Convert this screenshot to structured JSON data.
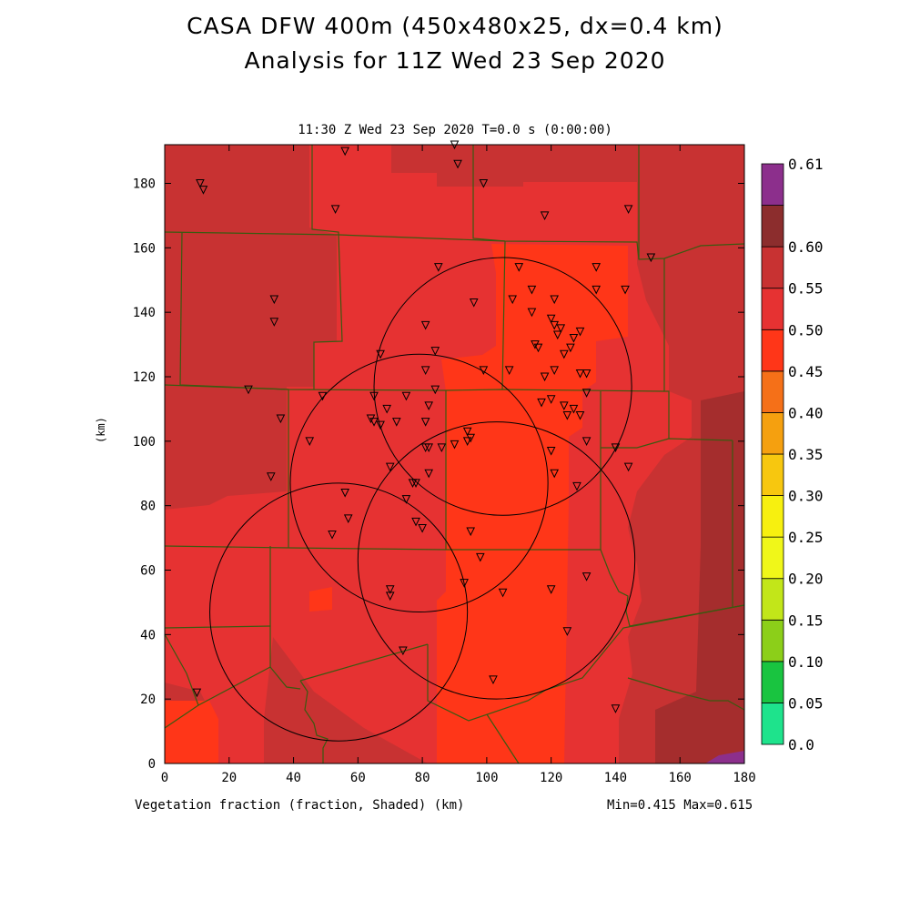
{
  "title_line1": "CASA DFW 400m (450x480x25, dx=0.4 km)",
  "title_line2": "Analysis for 11Z Wed 23 Sep 2020",
  "subtitle": "11:30 Z Wed 23 Sep 2020   T=0.0 s (0:00:00)",
  "bottom_left_label": "Vegetation fraction (fraction, Shaded)  (km)",
  "min_max_label": "Min=0.415 Max=0.615",
  "map_data": {
    "x_axis": {
      "label": "",
      "range": [
        0,
        180
      ],
      "ticks": [
        0,
        20,
        40,
        60,
        80,
        100,
        120,
        140,
        160,
        180
      ]
    },
    "y_axis": {
      "label": "(km)",
      "range": [
        0,
        192
      ],
      "ticks": [
        0,
        20,
        40,
        60,
        80,
        100,
        120,
        140,
        160,
        180
      ]
    },
    "color_scale": {
      "levels": [
        "0.0",
        "0.05",
        "0.10",
        "0.15",
        "0.20",
        "0.25",
        "0.30",
        "0.35",
        "0.40",
        "0.45",
        "0.50",
        "0.55",
        "0.60",
        "0.61"
      ],
      "colors": [
        "#1ee38c",
        "#19c440",
        "#8ccf19",
        "#c2e619",
        "#f0f719",
        "#f7f00f",
        "#f7c70f",
        "#f5a00f",
        "#f57018",
        "#ff3618",
        "#e63232",
        "#c83232",
        "#8c2d2d",
        "#8c2f8c"
      ]
    },
    "radar_rings": [
      {
        "cx": 54,
        "cy": 47,
        "r": 40
      },
      {
        "cx": 79,
        "cy": 87,
        "r": 40
      },
      {
        "cx": 103,
        "cy": 63,
        "r": 43
      },
      {
        "cx": 105,
        "cy": 117,
        "r": 40
      }
    ],
    "stations": [
      [
        11,
        180
      ],
      [
        12,
        178
      ],
      [
        56,
        190
      ],
      [
        53,
        172
      ],
      [
        90,
        192
      ],
      [
        91,
        186
      ],
      [
        99,
        180
      ],
      [
        118,
        170
      ],
      [
        144,
        172
      ],
      [
        151,
        157
      ],
      [
        85,
        154
      ],
      [
        110,
        154
      ],
      [
        134,
        154
      ],
      [
        34,
        144
      ],
      [
        34,
        137
      ],
      [
        96,
        143
      ],
      [
        114,
        147
      ],
      [
        108,
        144
      ],
      [
        121,
        144
      ],
      [
        134,
        147
      ],
      [
        143,
        147
      ],
      [
        81,
        136
      ],
      [
        114,
        140
      ],
      [
        120,
        138
      ],
      [
        121,
        136
      ],
      [
        123,
        135
      ],
      [
        122,
        133
      ],
      [
        127,
        132
      ],
      [
        129,
        134
      ],
      [
        126,
        129
      ],
      [
        115,
        130
      ],
      [
        116,
        129
      ],
      [
        124,
        127
      ],
      [
        67,
        127
      ],
      [
        84,
        128
      ],
      [
        81,
        122
      ],
      [
        99,
        122
      ],
      [
        107,
        122
      ],
      [
        118,
        120
      ],
      [
        121,
        122
      ],
      [
        129,
        121
      ],
      [
        131,
        121
      ],
      [
        26,
        116
      ],
      [
        49,
        114
      ],
      [
        65,
        114
      ],
      [
        75,
        114
      ],
      [
        84,
        116
      ],
      [
        82,
        111
      ],
      [
        69,
        110
      ],
      [
        117,
        112
      ],
      [
        120,
        113
      ],
      [
        124,
        111
      ],
      [
        127,
        110
      ],
      [
        125,
        108
      ],
      [
        129,
        108
      ],
      [
        131,
        115
      ],
      [
        36,
        107
      ],
      [
        64,
        107
      ],
      [
        65,
        106
      ],
      [
        67,
        105
      ],
      [
        72,
        106
      ],
      [
        81,
        106
      ],
      [
        94,
        103
      ],
      [
        94,
        100
      ],
      [
        95,
        101
      ],
      [
        90,
        99
      ],
      [
        86,
        98
      ],
      [
        81,
        98
      ],
      [
        82,
        98
      ],
      [
        45,
        100
      ],
      [
        131,
        100
      ],
      [
        140,
        98
      ],
      [
        144,
        92
      ],
      [
        33,
        89
      ],
      [
        70,
        92
      ],
      [
        82,
        90
      ],
      [
        120,
        97
      ],
      [
        121,
        90
      ],
      [
        128,
        86
      ],
      [
        56,
        84
      ],
      [
        78,
        87
      ],
      [
        77,
        87
      ],
      [
        75,
        82
      ],
      [
        57,
        76
      ],
      [
        78,
        75
      ],
      [
        80,
        73
      ],
      [
        95,
        72
      ],
      [
        52,
        71
      ],
      [
        98,
        64
      ],
      [
        131,
        58
      ],
      [
        93,
        56
      ],
      [
        70,
        54
      ],
      [
        70,
        52
      ],
      [
        105,
        53
      ],
      [
        120,
        54
      ],
      [
        125,
        41
      ],
      [
        74,
        35
      ],
      [
        102,
        26
      ],
      [
        10,
        22
      ],
      [
        140,
        17
      ]
    ]
  }
}
